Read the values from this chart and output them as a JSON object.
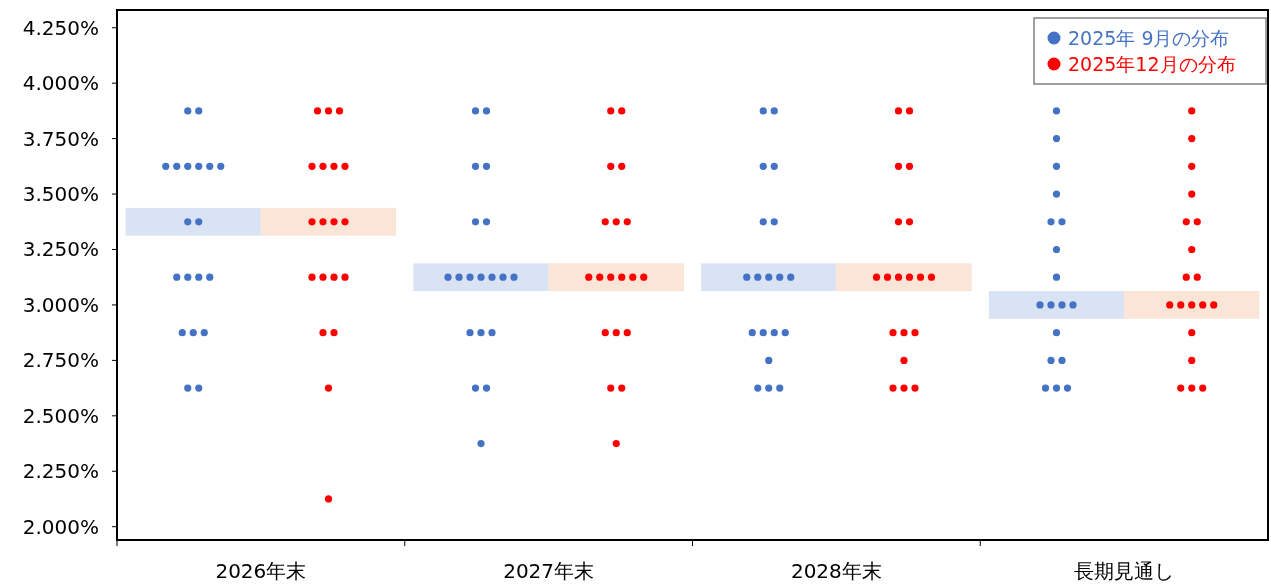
{
  "chart_data": {
    "type": "scatter",
    "categories": [
      "2026年末",
      "2027年末",
      "2028年末",
      "長期見通し"
    ],
    "ylim": [
      1.94,
      4.33
    ],
    "yticks": [
      {
        "value": 2.0,
        "label": "2.000%"
      },
      {
        "value": 2.25,
        "label": "2.250%"
      },
      {
        "value": 2.5,
        "label": "2.500%"
      },
      {
        "value": 2.75,
        "label": "2.750%"
      },
      {
        "value": 3.0,
        "label": "3.000%"
      },
      {
        "value": 3.25,
        "label": "3.250%"
      },
      {
        "value": 3.5,
        "label": "3.500%"
      },
      {
        "value": 3.75,
        "label": "3.750%"
      },
      {
        "value": 4.0,
        "label": "4.000%"
      },
      {
        "value": 4.25,
        "label": "4.250%"
      }
    ],
    "legend": "top right",
    "marker": "circle",
    "series": [
      {
        "type": "bar",
        "color": "#dae3f3",
        "base": [
          3.3125,
          3.0625,
          3.0625,
          2.9375
        ],
        "values": [
          0.125,
          0.125,
          0.125,
          0.125
        ]
      },
      {
        "type": "bar",
        "color": "#fbe5d6",
        "base": [
          3.3125,
          3.0625,
          3.0625,
          2.9375
        ],
        "values": [
          0.125,
          0.125,
          0.125,
          0.125
        ]
      },
      {
        "name": "2025年 9月の分布",
        "color": "#4472c4",
        "x": [
          "2026年末",
          "2026年末",
          "2026年末",
          "2026年末",
          "2026年末",
          "2026年末",
          "2026年末",
          "2026年末",
          "2026年末",
          "2026年末",
          "2026年末",
          "2026年末",
          "2026年末",
          "2026年末",
          "2026年末",
          "2026年末",
          "2026年末",
          "2026年末",
          "2026年末",
          "2027年末",
          "2027年末",
          "2027年末",
          "2027年末",
          "2027年末",
          "2027年末",
          "2027年末",
          "2027年末",
          "2027年末",
          "2027年末",
          "2027年末",
          "2027年末",
          "2027年末",
          "2027年末",
          "2027年末",
          "2027年末",
          "2027年末",
          "2027年末",
          "2027年末",
          "2028年末",
          "2028年末",
          "2028年末",
          "2028年末",
          "2028年末",
          "2028年末",
          "2028年末",
          "2028年末",
          "2028年末",
          "2028年末",
          "2028年末",
          "2028年末",
          "2028年末",
          "2028年末",
          "2028年末",
          "2028年末",
          "2028年末",
          "2028年末",
          "2028年末",
          "長期見通し",
          "長期見通し",
          "長期見通し",
          "長期見通し",
          "長期見通し",
          "長期見通し",
          "長期見通し",
          "長期見通し",
          "長期見通し",
          "長期見通し",
          "長期見通し",
          "長期見通し",
          "長期見通し",
          "長期見通し",
          "長期見通し",
          "長期見通し",
          "長期見通し",
          "長期見通し"
        ],
        "values": [
          3.875,
          3.875,
          3.625,
          3.625,
          3.625,
          3.625,
          3.625,
          3.625,
          3.375,
          3.375,
          3.125,
          3.125,
          3.125,
          3.125,
          2.875,
          2.875,
          2.875,
          2.625,
          2.625,
          3.875,
          3.875,
          3.625,
          3.625,
          3.375,
          3.375,
          3.125,
          3.125,
          3.125,
          3.125,
          3.125,
          3.125,
          3.125,
          2.875,
          2.875,
          2.875,
          2.625,
          2.625,
          2.375,
          3.875,
          3.875,
          3.625,
          3.625,
          3.375,
          3.375,
          3.125,
          3.125,
          3.125,
          3.125,
          3.125,
          2.875,
          2.875,
          2.875,
          2.875,
          2.75,
          2.625,
          2.625,
          2.625,
          3.875,
          3.75,
          3.625,
          3.5,
          3.375,
          3.375,
          3.25,
          3.125,
          3.0,
          3.0,
          3.0,
          3.0,
          2.875,
          2.75,
          2.75,
          2.625,
          2.625,
          2.625
        ]
      },
      {
        "name": "2025年12月の分布",
        "color": "#ff0000",
        "x": [
          "2026年末",
          "2026年末",
          "2026年末",
          "2026年末",
          "2026年末",
          "2026年末",
          "2026年末",
          "2026年末",
          "2026年末",
          "2026年末",
          "2026年末",
          "2026年末",
          "2026年末",
          "2026年末",
          "2026年末",
          "2026年末",
          "2026年末",
          "2026年末",
          "2026年末",
          "2027年末",
          "2027年末",
          "2027年末",
          "2027年末",
          "2027年末",
          "2027年末",
          "2027年末",
          "2027年末",
          "2027年末",
          "2027年末",
          "2027年末",
          "2027年末",
          "2027年末",
          "2027年末",
          "2027年末",
          "2027年末",
          "2027年末",
          "2027年末",
          "2027年末",
          "2028年末",
          "2028年末",
          "2028年末",
          "2028年末",
          "2028年末",
          "2028年末",
          "2028年末",
          "2028年末",
          "2028年末",
          "2028年末",
          "2028年末",
          "2028年末",
          "2028年末",
          "2028年末",
          "2028年末",
          "2028年末",
          "2028年末",
          "2028年末",
          "2028年末",
          "長期見通し",
          "長期見通し",
          "長期見通し",
          "長期見通し",
          "長期見通し",
          "長期見通し",
          "長期見通し",
          "長期見通し",
          "長期見通し",
          "長期見通し",
          "長期見通し",
          "長期見通し",
          "長期見通し",
          "長期見通し",
          "長期見通し",
          "長期見通し",
          "長期見通し",
          "長期見通し",
          "長期見通し"
        ],
        "values": [
          3.875,
          3.875,
          3.875,
          3.625,
          3.625,
          3.625,
          3.625,
          3.375,
          3.375,
          3.375,
          3.375,
          3.125,
          3.125,
          3.125,
          3.125,
          2.875,
          2.875,
          2.625,
          2.125,
          3.875,
          3.875,
          3.625,
          3.625,
          3.375,
          3.375,
          3.375,
          3.125,
          3.125,
          3.125,
          3.125,
          3.125,
          3.125,
          2.875,
          2.875,
          2.875,
          2.625,
          2.625,
          2.375,
          3.875,
          3.875,
          3.625,
          3.625,
          3.375,
          3.375,
          3.125,
          3.125,
          3.125,
          3.125,
          3.125,
          3.125,
          2.875,
          2.875,
          2.875,
          2.75,
          2.625,
          2.625,
          2.625,
          3.875,
          3.75,
          3.625,
          3.5,
          3.375,
          3.375,
          3.25,
          3.125,
          3.125,
          3.0,
          3.0,
          3.0,
          3.0,
          3.0,
          2.875,
          2.75,
          2.625,
          2.625,
          2.625
        ]
      }
    ]
  }
}
